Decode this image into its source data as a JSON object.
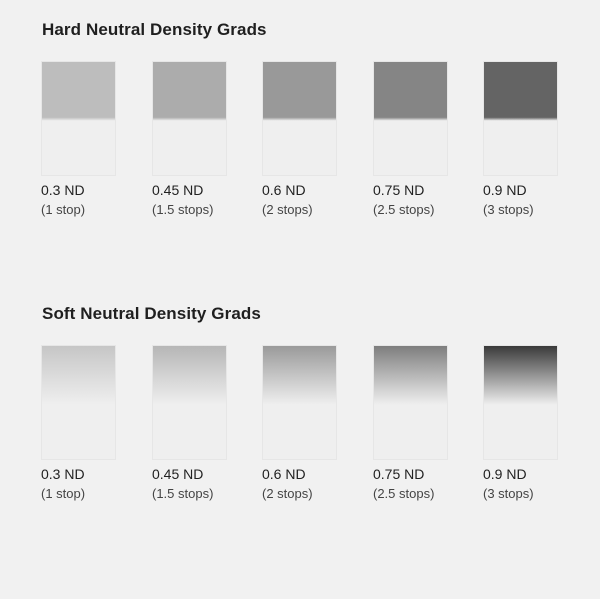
{
  "hard": {
    "title": "Hard Neutral Density Grads",
    "filters": [
      {
        "name": "0.3 ND",
        "stops": "(1 stop)",
        "tone": "#bdbdbd"
      },
      {
        "name": "0.45 ND",
        "stops": "(1.5 stops)",
        "tone": "#acacac"
      },
      {
        "name": "0.6 ND",
        "stops": "(2 stops)",
        "tone": "#999999"
      },
      {
        "name": "0.75 ND",
        "stops": "(2.5 stops)",
        "tone": "#858585"
      },
      {
        "name": "0.9 ND",
        "stops": "(3 stops)",
        "tone": "#646464"
      }
    ],
    "clear_tone": "#efefef"
  },
  "soft": {
    "title": "Soft Neutral Density Grads",
    "filters": [
      {
        "name": "0.3 ND",
        "stops": "(1 stop)",
        "tone": "#c6c6c6"
      },
      {
        "name": "0.45 ND",
        "stops": "(1.5 stops)",
        "tone": "#b6b6b6"
      },
      {
        "name": "0.6 ND",
        "stops": "(2 stops)",
        "tone": "#9a9a9a"
      },
      {
        "name": "0.75 ND",
        "stops": "(2.5 stops)",
        "tone": "#7e7e7e"
      },
      {
        "name": "0.9 ND",
        "stops": "(3 stops)",
        "tone": "#3a3a3a"
      }
    ],
    "clear_tone": "#efefef"
  }
}
